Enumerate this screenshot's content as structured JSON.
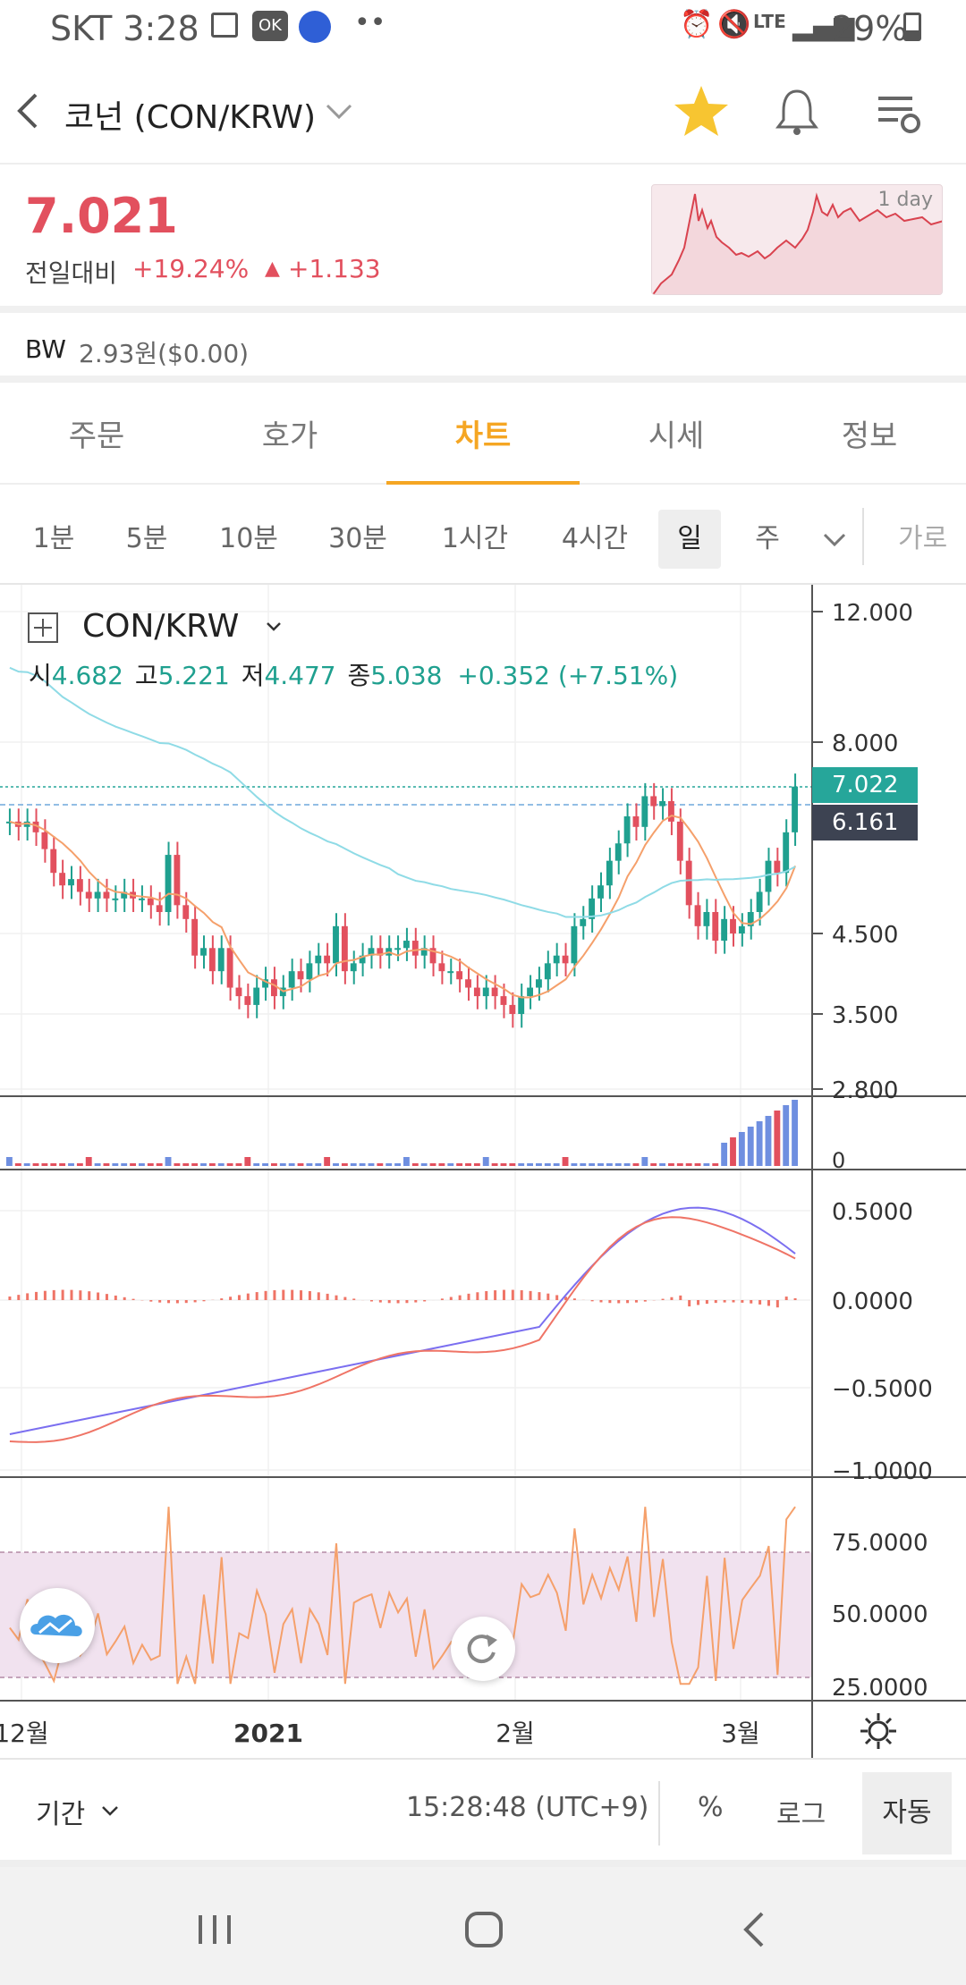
{
  "status_bar": {
    "carrier_time": "SKT 3:28",
    "network": "LTE",
    "battery": "29%"
  },
  "header": {
    "title": "코넌 (CON/KRW)"
  },
  "price": {
    "value": "7.021",
    "change_label": "전일대비",
    "change_pct": "+19.24%",
    "change_abs": "+1.133",
    "mini_chart_label": "1 day"
  },
  "bw": {
    "label": "BW",
    "value": "2.93원($0.00)"
  },
  "tabs": [
    "주문",
    "호가",
    "차트",
    "시세",
    "정보"
  ],
  "active_tab": "차트",
  "intervals": [
    "1분",
    "5분",
    "10분",
    "30분",
    "1시간",
    "4시간",
    "일",
    "주"
  ],
  "active_interval": "일",
  "interval_more": "가로",
  "chart": {
    "symbol": "CON/KRW",
    "ohlc": {
      "o_label": "시",
      "o": "4.682",
      "h_label": "고",
      "h": "5.221",
      "l_label": "저",
      "l": "4.477",
      "c_label": "종",
      "c": "5.038",
      "chg": "+0.352 (+7.51%)"
    },
    "price_ticks": [
      "12.000",
      "8.000",
      "4.500",
      "3.500",
      "2.800"
    ],
    "last_price_tag": "7.022",
    "ma_price_tag": "6.161",
    "volume_ticks": [
      "0"
    ],
    "macd_ticks": [
      "0.5000",
      "0.0000",
      "−0.5000",
      "−1.0000"
    ],
    "rsi_ticks": [
      "75.0000",
      "50.0000",
      "25.0000"
    ],
    "x_labels": [
      "12월",
      "2021",
      "2월",
      "3월"
    ],
    "colors": {
      "up": "#e2505e",
      "down": "#1fa08f",
      "ma_short": "#f5a06b",
      "ma_long": "#8fdbe6",
      "macd": "#7b6ff0",
      "signal": "#ef7466",
      "rsi": "#f5a06b",
      "rsi_band": "#f1e2ef"
    }
  },
  "bottom": {
    "period_label": "기간",
    "time": "15:28:48 (UTC+9)",
    "pct": "%",
    "log": "로그",
    "auto": "자동"
  }
}
